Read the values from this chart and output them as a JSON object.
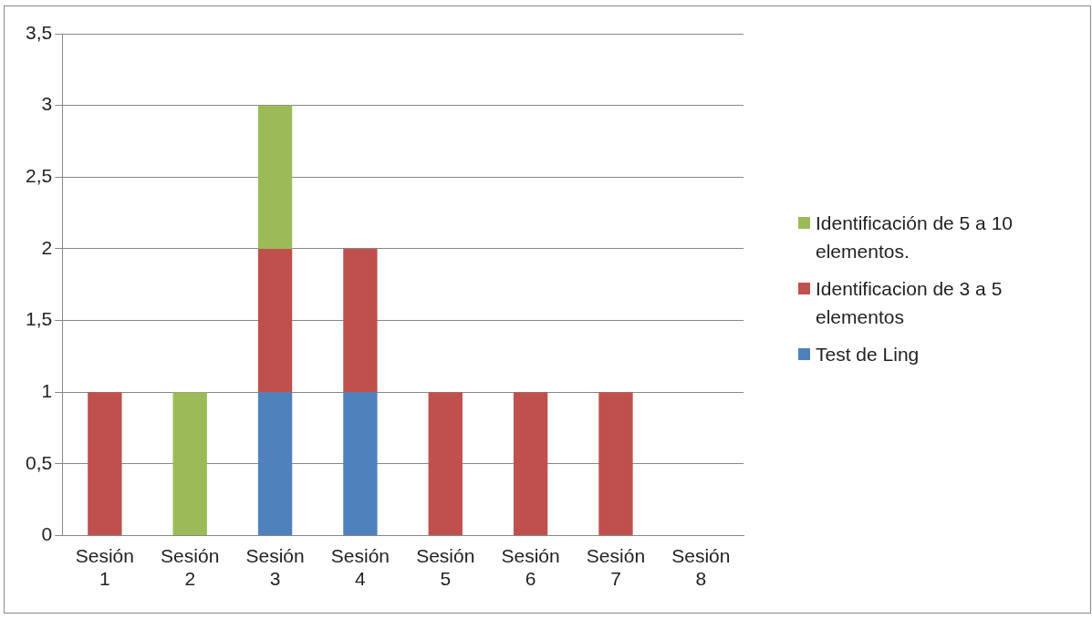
{
  "chart_data": {
    "type": "bar",
    "stacked": true,
    "categories": [
      "Sesión 1",
      "Sesión 2",
      "Sesión 3",
      "Sesión 4",
      "Sesión 5",
      "Sesión 6",
      "Sesión 7",
      "Sesión 8"
    ],
    "series": [
      {
        "name": "Test de Ling",
        "color": "#4f81bd",
        "values": [
          0,
          0,
          1,
          1,
          0,
          0,
          0,
          0
        ]
      },
      {
        "name": "Identificacion de 3 a 5 elementos",
        "color": "#c0504d",
        "values": [
          1,
          0,
          1,
          1,
          1,
          1,
          1,
          0
        ]
      },
      {
        "name": "Identificación de 5 a 10 elementos.",
        "color": "#9bbb59",
        "values": [
          0,
          1,
          1,
          0,
          0,
          0,
          0,
          0
        ]
      }
    ],
    "ylim": [
      0,
      3.5
    ],
    "yticks": [
      0,
      {
        "value": 0.5,
        "label": "0,5"
      },
      1,
      {
        "value": 1.5,
        "label": "1,5"
      },
      2,
      {
        "value": 2.5,
        "label": "2,5"
      },
      3,
      {
        "value": 3.5,
        "label": "3,5"
      }
    ],
    "grid": "y",
    "legend": "right"
  }
}
